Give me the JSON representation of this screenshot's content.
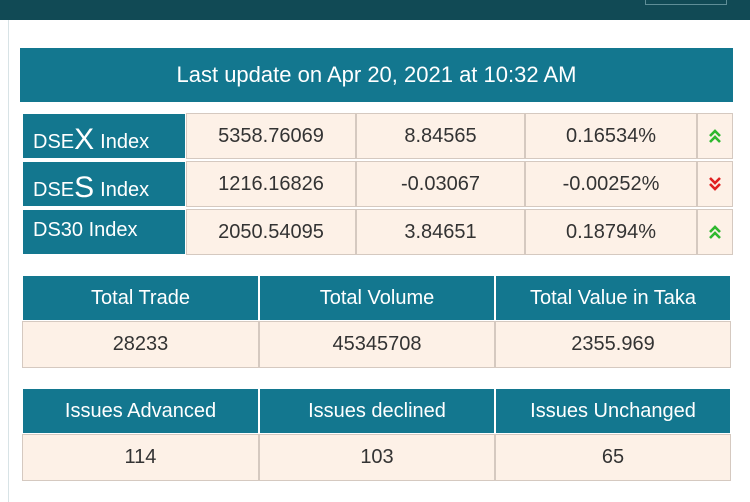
{
  "header": {
    "title": "Last update on Apr 20, 2021 at 10:32 AM"
  },
  "indices": [
    {
      "name_parts": [
        "DSE",
        "X",
        "Index"
      ],
      "value": 5358.76069,
      "change": 8.84565,
      "percent": "0.16534%",
      "trend": "up"
    },
    {
      "name_parts": [
        "DSE",
        "S",
        "Index"
      ],
      "value": 1216.16826,
      "change": -0.03067,
      "percent": "-0.00252%",
      "trend": "down"
    },
    {
      "name_parts": [
        "DS30 Index"
      ],
      "value": 2050.54095,
      "change": 3.84651,
      "percent": "0.18794%",
      "trend": "up"
    }
  ],
  "tables": [
    {
      "headers": [
        "Total Trade",
        "Total Volume",
        "Total Value in Taka"
      ],
      "values": [
        28233,
        45345708,
        2355.969
      ]
    },
    {
      "headers": [
        "Issues Advanced",
        "Issues declined",
        "Issues Unchanged"
      ],
      "values": [
        114,
        103,
        65
      ]
    }
  ]
}
